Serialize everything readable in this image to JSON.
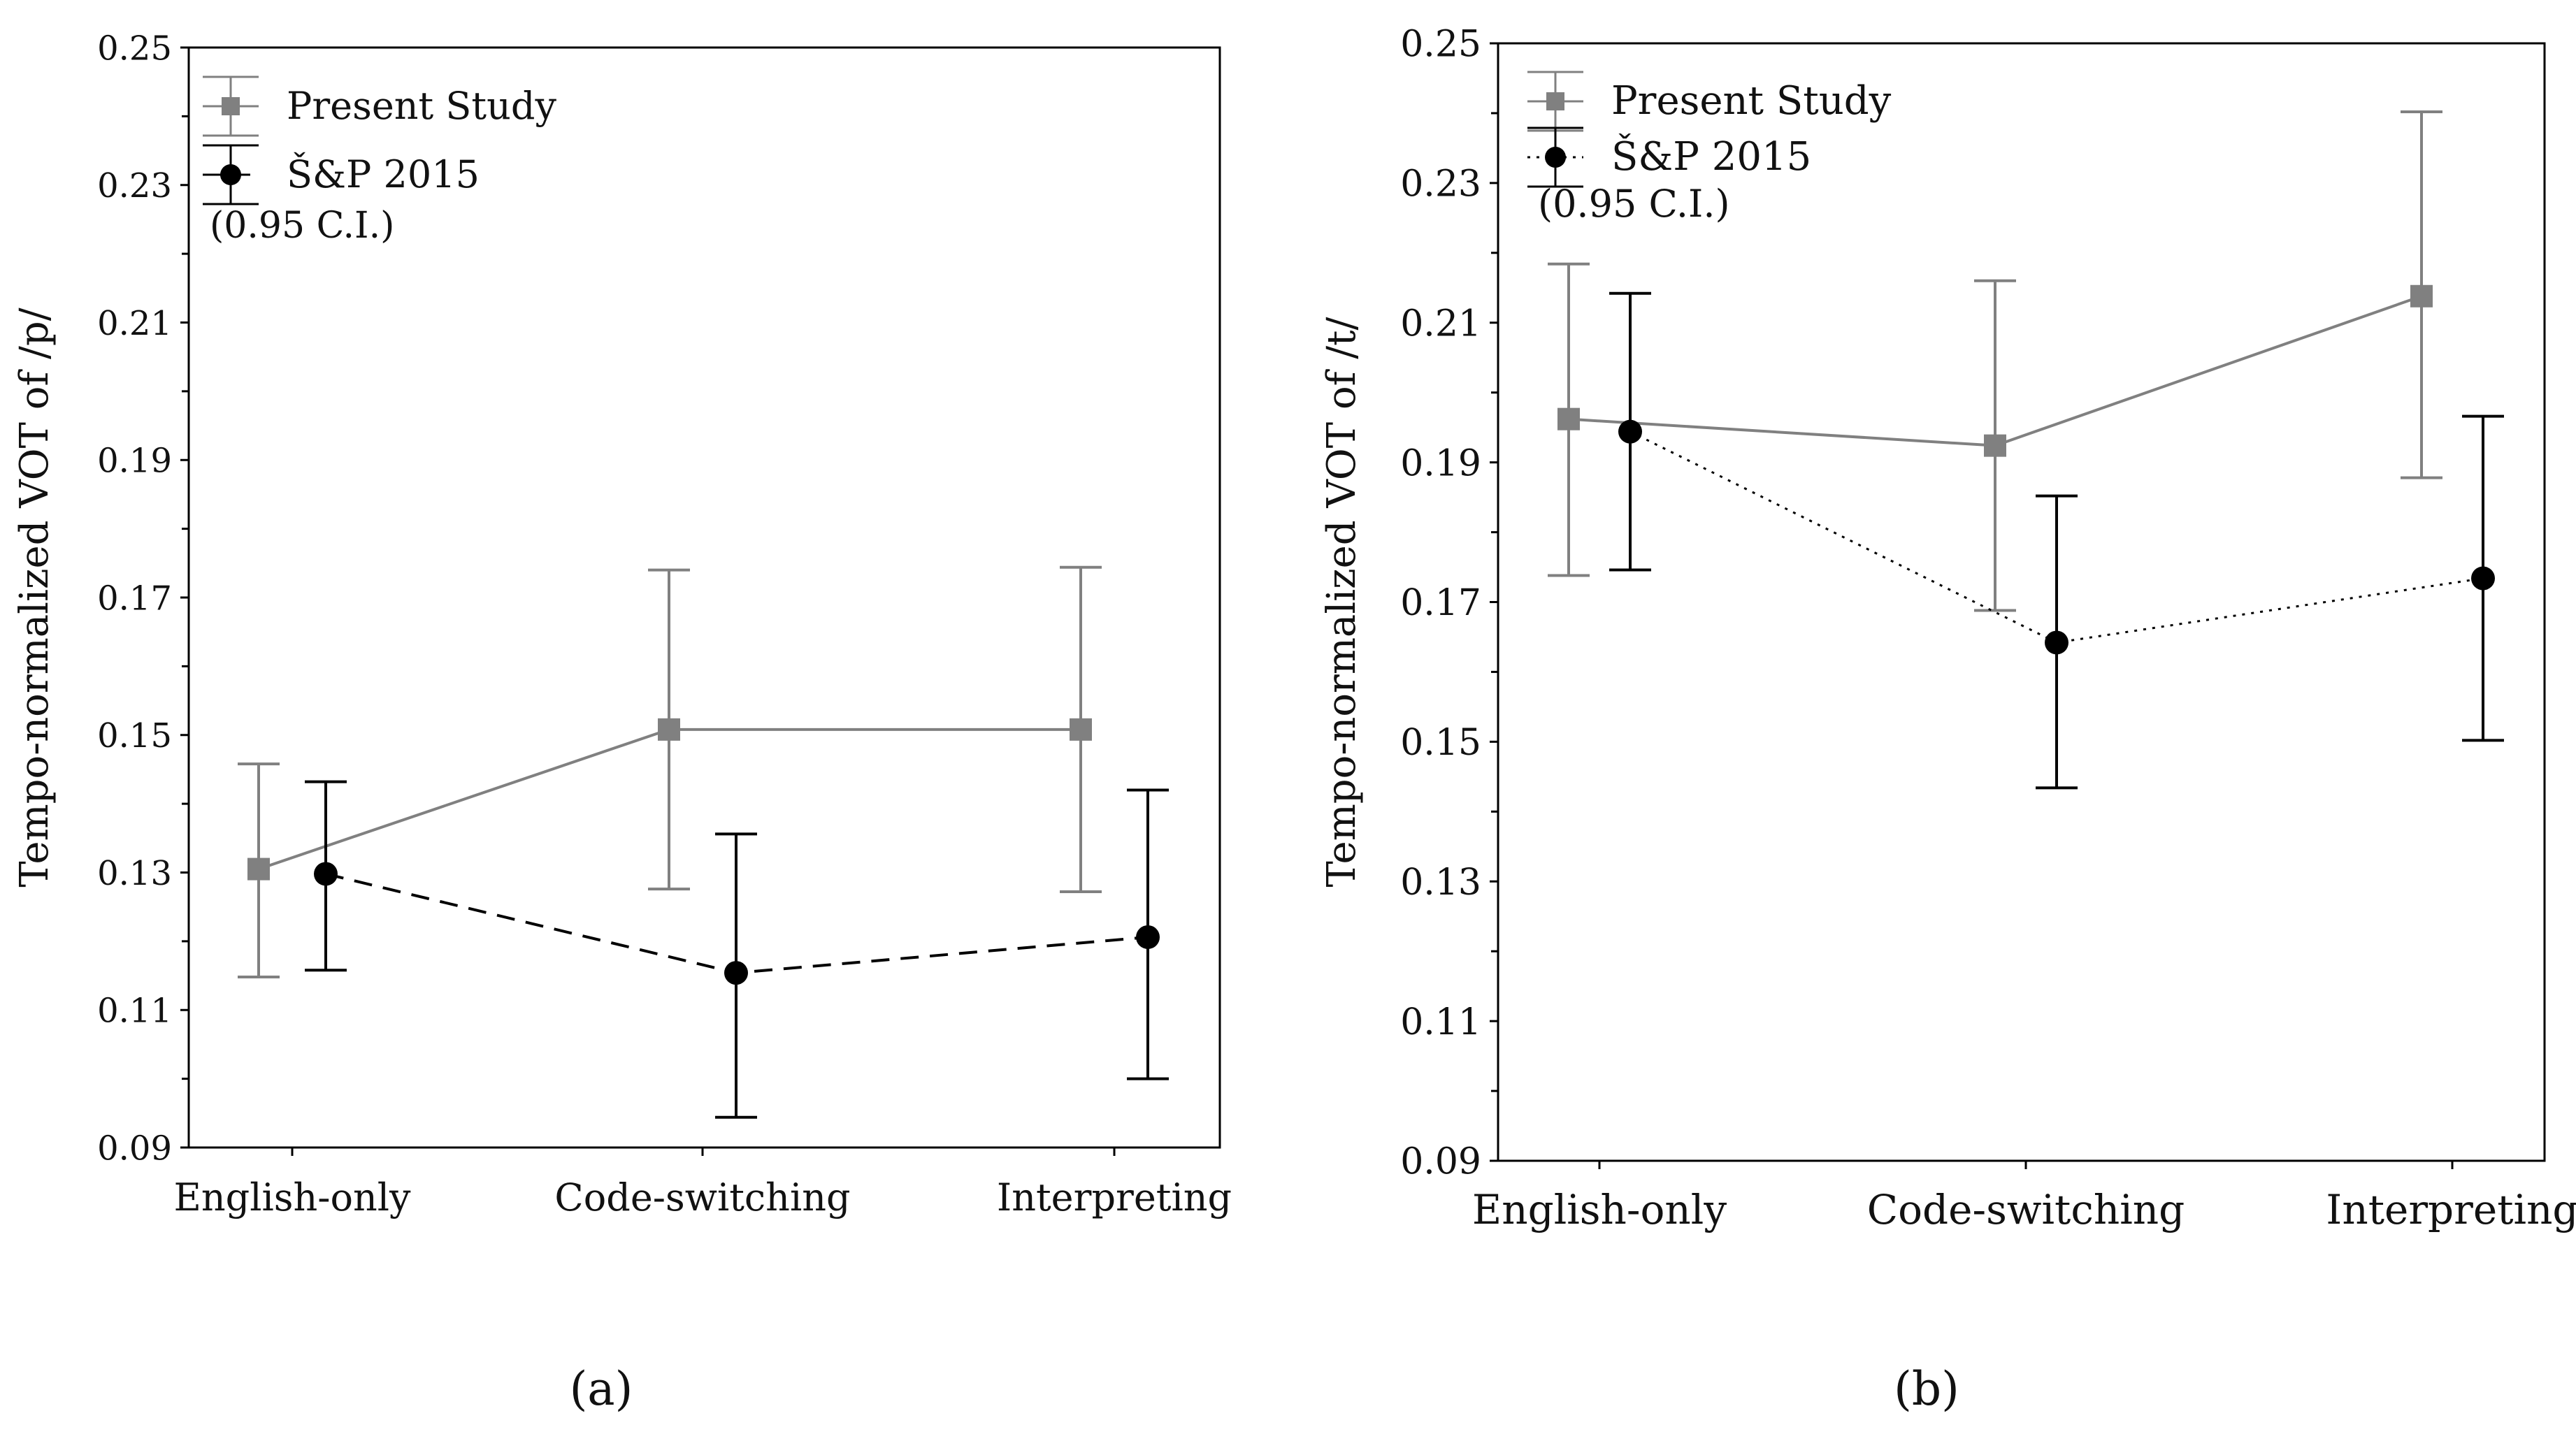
{
  "figure": {
    "panel_labels": [
      "(a)",
      "(b)"
    ]
  },
  "chart_data": [
    {
      "type": "line",
      "panel": "(a)",
      "title": "",
      "xlabel": "",
      "ylabel": "Tempo-normalized VOT of /p/",
      "categories": [
        "English-only",
        "Code-switching",
        "Interpreting"
      ],
      "ylim": [
        0.09,
        0.25
      ],
      "yticks": [
        "0.09",
        "0.11",
        "0.13",
        "0.15",
        "0.17",
        "0.19",
        "0.21",
        "0.23",
        "0.25"
      ],
      "legend_position": "top-left",
      "legend_note": "(0.95 C.I.)",
      "grid": false,
      "series": [
        {
          "name": "Present Study",
          "color": "#808080",
          "marker": "square",
          "line_style": "solid",
          "values": [
            0.1305,
            0.1508,
            0.1508
          ],
          "ci_low": [
            0.1148,
            0.1276,
            0.1272
          ],
          "ci_high": [
            0.1458,
            0.174,
            0.1744
          ]
        },
        {
          "name": "Š&P 2015",
          "color": "#000000",
          "marker": "circle",
          "line_style": "dashed",
          "values": [
            0.1298,
            0.1154,
            0.1206
          ],
          "ci_low": [
            0.1158,
            0.0944,
            0.1
          ],
          "ci_high": [
            0.1432,
            0.1356,
            0.142
          ]
        }
      ]
    },
    {
      "type": "line",
      "panel": "(b)",
      "title": "",
      "xlabel": "",
      "ylabel": "Tempo-normalized VOT of /t/",
      "categories": [
        "English-only",
        "Code-switching",
        "Interpreting"
      ],
      "ylim": [
        0.09,
        0.25
      ],
      "yticks": [
        "0.09",
        "0.11",
        "0.13",
        "0.15",
        "0.17",
        "0.19",
        "0.21",
        "0.23",
        "0.25"
      ],
      "legend_position": "top-left",
      "legend_note": "(0.95 C.I.)",
      "grid": false,
      "series": [
        {
          "name": "Present Study",
          "color": "#808080",
          "marker": "square",
          "line_style": "solid",
          "values": [
            0.1962,
            0.1924,
            0.2138
          ],
          "ci_low": [
            0.1738,
            0.1688,
            0.1878
          ],
          "ci_high": [
            0.2184,
            0.216,
            0.2402
          ]
        },
        {
          "name": "Š&P 2015",
          "color": "#000000",
          "marker": "circle",
          "line_style": "dotted",
          "values": [
            0.1944,
            0.1642,
            0.1734
          ],
          "ci_low": [
            0.1746,
            0.1434,
            0.1502
          ],
          "ci_high": [
            0.2142,
            0.1852,
            0.1966
          ]
        }
      ]
    }
  ]
}
